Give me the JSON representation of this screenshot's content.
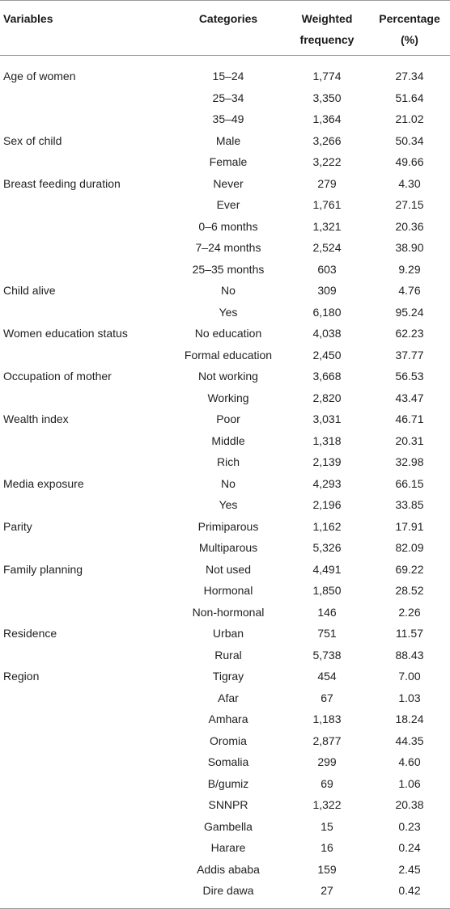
{
  "headers": {
    "variables": "Variables",
    "categories": "Categories",
    "weighted_frequency_line1": "Weighted",
    "weighted_frequency_line2": "frequency",
    "percentage_line1": "Percentage",
    "percentage_line2": "(%)"
  },
  "rows": [
    {
      "variable": "Age of women",
      "category": "15–24",
      "frequency": "1,774",
      "percentage": "27.34"
    },
    {
      "variable": "",
      "category": "25–34",
      "frequency": "3,350",
      "percentage": "51.64"
    },
    {
      "variable": "",
      "category": "35–49",
      "frequency": "1,364",
      "percentage": "21.02"
    },
    {
      "variable": "Sex of child",
      "category": "Male",
      "frequency": "3,266",
      "percentage": "50.34"
    },
    {
      "variable": "",
      "category": "Female",
      "frequency": "3,222",
      "percentage": "49.66"
    },
    {
      "variable": "Breast feeding duration",
      "category": "Never",
      "frequency": "279",
      "percentage": "4.30"
    },
    {
      "variable": "",
      "category": "Ever",
      "frequency": "1,761",
      "percentage": "27.15"
    },
    {
      "variable": "",
      "category": "0–6 months",
      "frequency": "1,321",
      "percentage": "20.36"
    },
    {
      "variable": "",
      "category": "7–24 months",
      "frequency": "2,524",
      "percentage": "38.90"
    },
    {
      "variable": "",
      "category": "25–35 months",
      "frequency": "603",
      "percentage": "9.29"
    },
    {
      "variable": "Child alive",
      "category": "No",
      "frequency": "309",
      "percentage": "4.76"
    },
    {
      "variable": "",
      "category": "Yes",
      "frequency": "6,180",
      "percentage": "95.24"
    },
    {
      "variable": "Women education status",
      "category": "No education",
      "frequency": "4,038",
      "percentage": "62.23"
    },
    {
      "variable": "",
      "category": "Formal education",
      "frequency": "2,450",
      "percentage": "37.77"
    },
    {
      "variable": "Occupation of mother",
      "category": "Not working",
      "frequency": "3,668",
      "percentage": "56.53"
    },
    {
      "variable": "",
      "category": "Working",
      "frequency": "2,820",
      "percentage": "43.47"
    },
    {
      "variable": "Wealth index",
      "category": "Poor",
      "frequency": "3,031",
      "percentage": "46.71"
    },
    {
      "variable": "",
      "category": "Middle",
      "frequency": "1,318",
      "percentage": "20.31"
    },
    {
      "variable": "",
      "category": "Rich",
      "frequency": "2,139",
      "percentage": "32.98"
    },
    {
      "variable": "Media exposure",
      "category": "No",
      "frequency": "4,293",
      "percentage": "66.15"
    },
    {
      "variable": "",
      "category": "Yes",
      "frequency": "2,196",
      "percentage": "33.85"
    },
    {
      "variable": "Parity",
      "category": "Primiparous",
      "frequency": "1,162",
      "percentage": "17.91"
    },
    {
      "variable": "",
      "category": "Multiparous",
      "frequency": "5,326",
      "percentage": "82.09"
    },
    {
      "variable": "Family planning",
      "category": "Not used",
      "frequency": "4,491",
      "percentage": "69.22"
    },
    {
      "variable": "",
      "category": "Hormonal",
      "frequency": "1,850",
      "percentage": "28.52"
    },
    {
      "variable": "",
      "category": "Non-hormonal",
      "frequency": "146",
      "percentage": "2.26"
    },
    {
      "variable": "Residence",
      "category": "Urban",
      "frequency": "751",
      "percentage": "11.57"
    },
    {
      "variable": "",
      "category": "Rural",
      "frequency": "5,738",
      "percentage": "88.43"
    },
    {
      "variable": "Region",
      "category": "Tigray",
      "frequency": "454",
      "percentage": "7.00"
    },
    {
      "variable": "",
      "category": "Afar",
      "frequency": "67",
      "percentage": "1.03"
    },
    {
      "variable": "",
      "category": "Amhara",
      "frequency": "1,183",
      "percentage": "18.24"
    },
    {
      "variable": "",
      "category": "Oromia",
      "frequency": "2,877",
      "percentage": "44.35"
    },
    {
      "variable": "",
      "category": "Somalia",
      "frequency": "299",
      "percentage": "4.60"
    },
    {
      "variable": "",
      "category": "B/gumiz",
      "frequency": "69",
      "percentage": "1.06"
    },
    {
      "variable": "",
      "category": "SNNPR",
      "frequency": "1,322",
      "percentage": "20.38"
    },
    {
      "variable": "",
      "category": "Gambella",
      "frequency": "15",
      "percentage": "0.23"
    },
    {
      "variable": "",
      "category": "Harare",
      "frequency": "16",
      "percentage": "0.24"
    },
    {
      "variable": "",
      "category": "Addis ababa",
      "frequency": "159",
      "percentage": "2.45"
    },
    {
      "variable": "",
      "category": "Dire dawa",
      "frequency": "27",
      "percentage": "0.42"
    }
  ]
}
